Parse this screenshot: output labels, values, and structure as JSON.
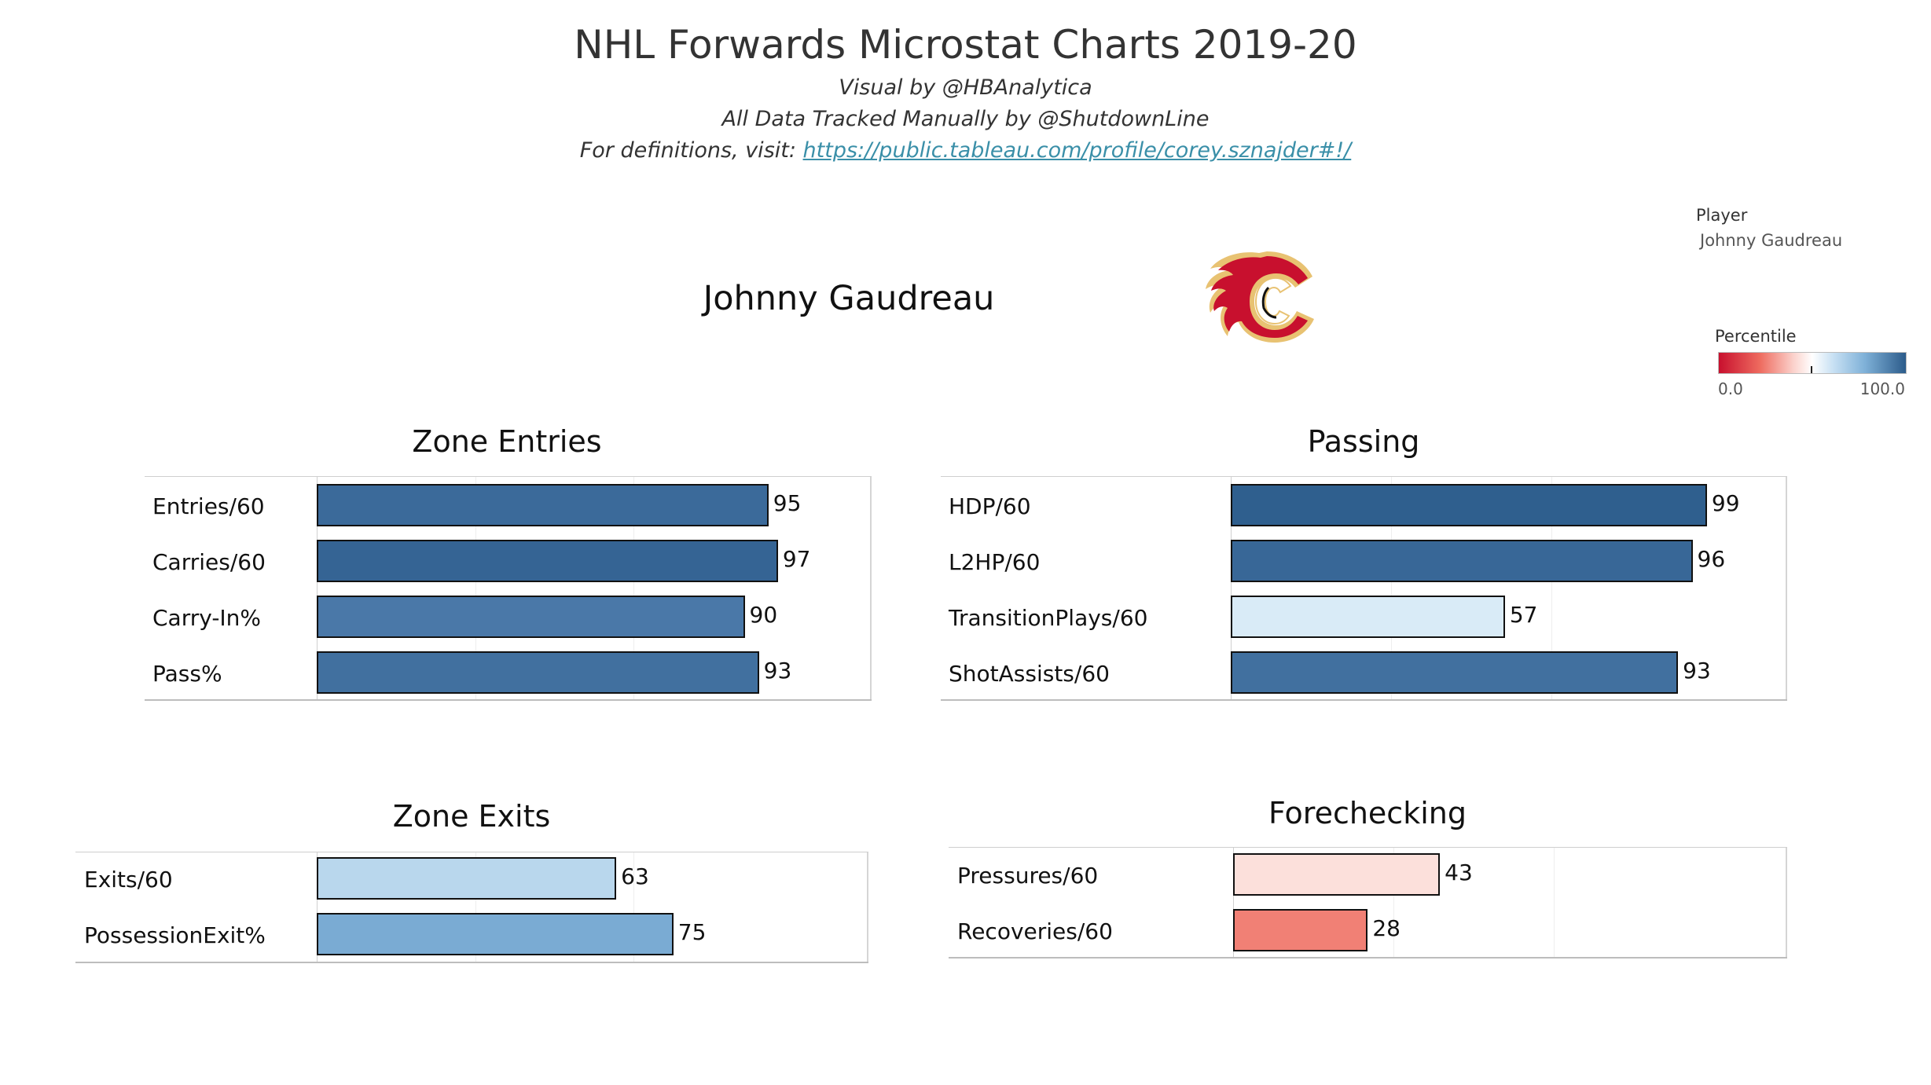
{
  "title": "NHL Forwards Microstat Charts 2019-20",
  "subtitle_visual": "Visual by @HBAnalytica",
  "subtitle_data": "All Data Tracked Manually by @ShutdownLine",
  "subtitle_definitions_prefix": "For definitions, visit: ",
  "subtitle_definitions_link": "https://public.tableau.com/profile/corey.sznajder#!/",
  "player_name": "Johnny Gaudreau",
  "team_logo_icon": "calgary-flames-logo",
  "filter": {
    "label": "Player",
    "value": "Johnny Gaudreau"
  },
  "legend": {
    "title": "Percentile",
    "min_label": "0.0",
    "max_label": "100.0",
    "min_color": "#c8102e",
    "mid_color": "#ffffff",
    "max_color": "#2c5c8b"
  },
  "chart_data": [
    {
      "type": "bar",
      "title": "Zone Entries",
      "orientation": "horizontal",
      "categories": [
        "Entries/60",
        "Carries/60",
        "Carry-In%",
        "Pass%"
      ],
      "values": [
        95,
        97,
        90,
        93
      ],
      "xlim": [
        0,
        100
      ]
    },
    {
      "type": "bar",
      "title": "Passing",
      "orientation": "horizontal",
      "categories": [
        "HDP/60",
        "L2HP/60",
        "TransitionPlays/60",
        "ShotAssists/60"
      ],
      "values": [
        99,
        96,
        57,
        93
      ],
      "xlim": [
        0,
        100
      ]
    },
    {
      "type": "bar",
      "title": "Zone Exits",
      "orientation": "horizontal",
      "categories": [
        "Exits/60",
        "PossessionExit%"
      ],
      "values": [
        63,
        75
      ],
      "xlim": [
        0,
        100
      ]
    },
    {
      "type": "bar",
      "title": "Forechecking",
      "orientation": "horizontal",
      "categories": [
        "Pressures/60",
        "Recoveries/60"
      ],
      "values": [
        43,
        28
      ],
      "xlim": [
        0,
        100
      ]
    }
  ]
}
